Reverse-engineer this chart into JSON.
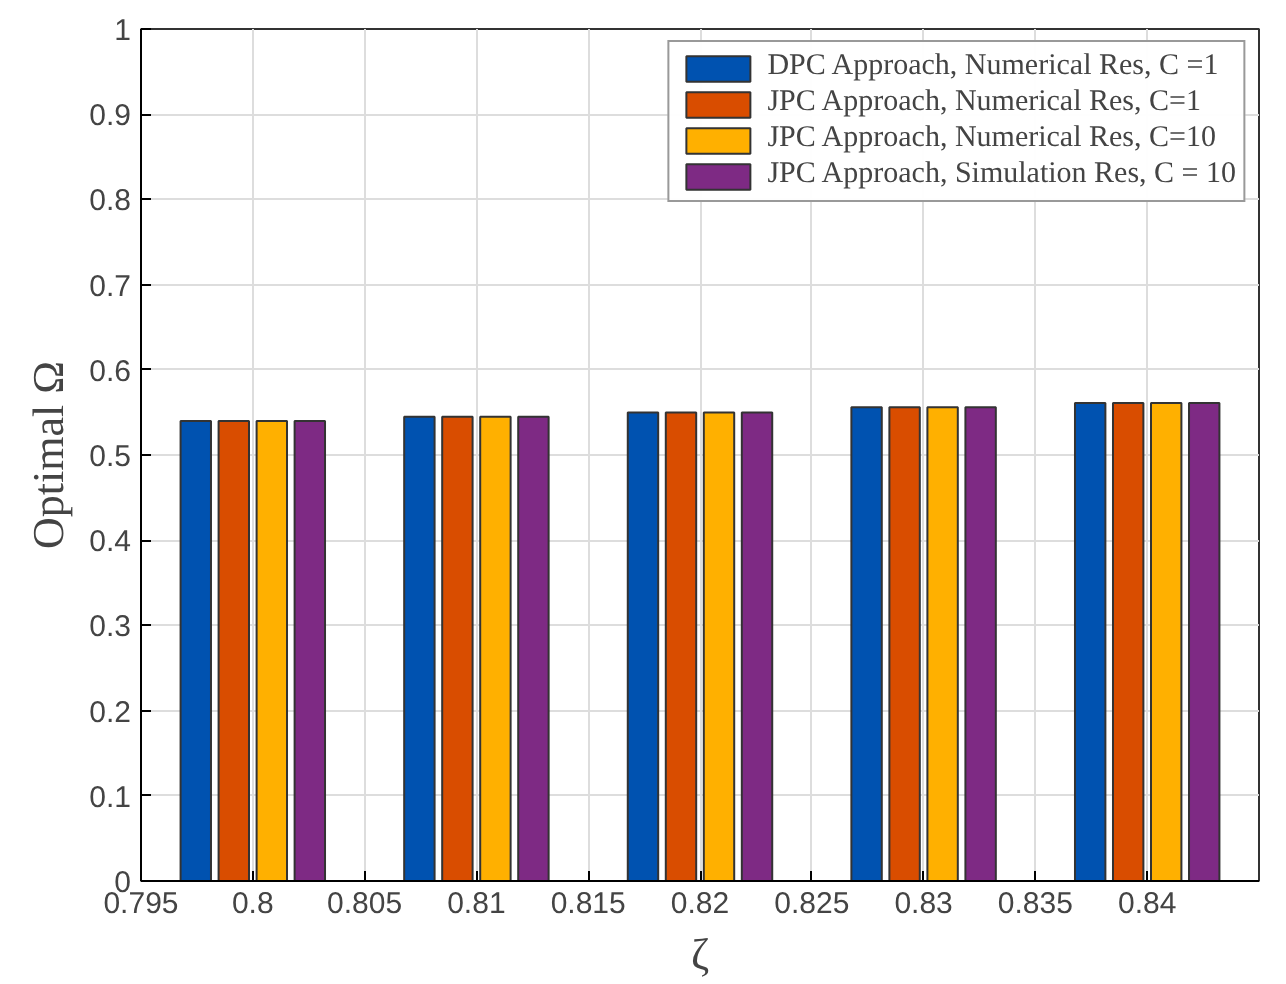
{
  "chart_data": {
    "type": "bar",
    "xlabel": "ζ",
    "ylabel": "Optimal Ω",
    "x": [
      0.8,
      0.81,
      0.82,
      0.83,
      0.84
    ],
    "series": [
      {
        "name": "DPC Approach, Numerical Res, C =1",
        "color": "#0052b0",
        "values": [
          0.54,
          0.545,
          0.55,
          0.556,
          0.561
        ]
      },
      {
        "name": "JPC Approach, Numerical Res, C=1",
        "color": "#d94d00",
        "values": [
          0.54,
          0.545,
          0.55,
          0.556,
          0.561
        ]
      },
      {
        "name": "JPC Approach, Numerical Res, C=10",
        "color": "#ffb000",
        "values": [
          0.54,
          0.545,
          0.55,
          0.556,
          0.561
        ]
      },
      {
        "name": "JPC Approach, Simulation Res, C = 10",
        "color": "#7e2a84",
        "values": [
          0.54,
          0.545,
          0.55,
          0.556,
          0.561
        ]
      }
    ],
    "xlim": [
      0.795,
      0.845
    ],
    "xticks": [
      0.795,
      0.8,
      0.805,
      0.81,
      0.815,
      0.82,
      0.825,
      0.83,
      0.835,
      0.84
    ],
    "ylim": [
      0,
      1
    ],
    "yticks": [
      0,
      0.1,
      0.2,
      0.3,
      0.4,
      0.5,
      0.6,
      0.7,
      0.8,
      0.9,
      1
    ],
    "grid": true,
    "legend": "top right"
  }
}
